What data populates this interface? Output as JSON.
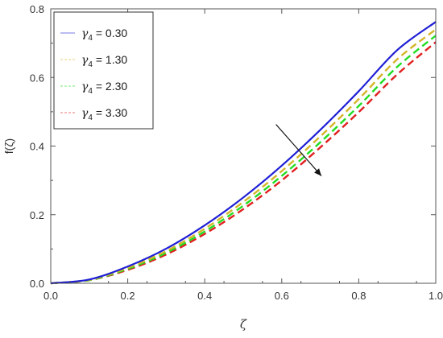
{
  "chart_data": {
    "type": "line",
    "title": "",
    "xlabel": "ζ",
    "ylabel": "f(ζ)",
    "xlim": [
      0.0,
      1.0
    ],
    "ylim": [
      0.0,
      0.8
    ],
    "x_ticks": [
      0.0,
      0.2,
      0.4,
      0.6,
      0.8,
      1.0
    ],
    "x_tick_labels": [
      "0.0",
      "0.2",
      "0.4",
      "0.6",
      "0.8",
      "1.0"
    ],
    "y_ticks": [
      0.0,
      0.2,
      0.4,
      0.6,
      0.8
    ],
    "y_tick_labels": [
      "0.0",
      "0.2",
      "0.4",
      "0.6",
      "0.8"
    ],
    "grid": false,
    "legend_position": "top-left",
    "legend_symbol": "γ",
    "legend_subscript": "4",
    "x": [
      0.0,
      0.1,
      0.2,
      0.3,
      0.4,
      0.5,
      0.6,
      0.7,
      0.8,
      0.9,
      1.0
    ],
    "series": [
      {
        "name": "0.30",
        "color": "#1f1fd6",
        "dash": "solid",
        "values": [
          0.0,
          0.011,
          0.049,
          0.101,
          0.169,
          0.25,
          0.343,
          0.447,
          0.56,
          0.68,
          0.762
        ]
      },
      {
        "name": "1.30",
        "color": "#d4b52a",
        "dash": "dashed",
        "values": [
          0.0,
          0.01,
          0.045,
          0.094,
          0.159,
          0.237,
          0.327,
          0.428,
          0.537,
          0.653,
          0.74
        ]
      },
      {
        "name": "2.30",
        "color": "#22dd22",
        "dash": "dashed",
        "values": [
          0.0,
          0.009,
          0.042,
          0.089,
          0.151,
          0.226,
          0.313,
          0.411,
          0.517,
          0.631,
          0.722
        ]
      },
      {
        "name": "3.30",
        "color": "#e01f1f",
        "dash": "dashed",
        "values": [
          0.0,
          0.009,
          0.039,
          0.084,
          0.144,
          0.216,
          0.3,
          0.396,
          0.499,
          0.609,
          0.703
        ]
      }
    ],
    "annotation": {
      "type": "arrow",
      "from": [
        0.585,
        0.463
      ],
      "to": [
        0.703,
        0.313
      ],
      "color": "#111111"
    }
  }
}
